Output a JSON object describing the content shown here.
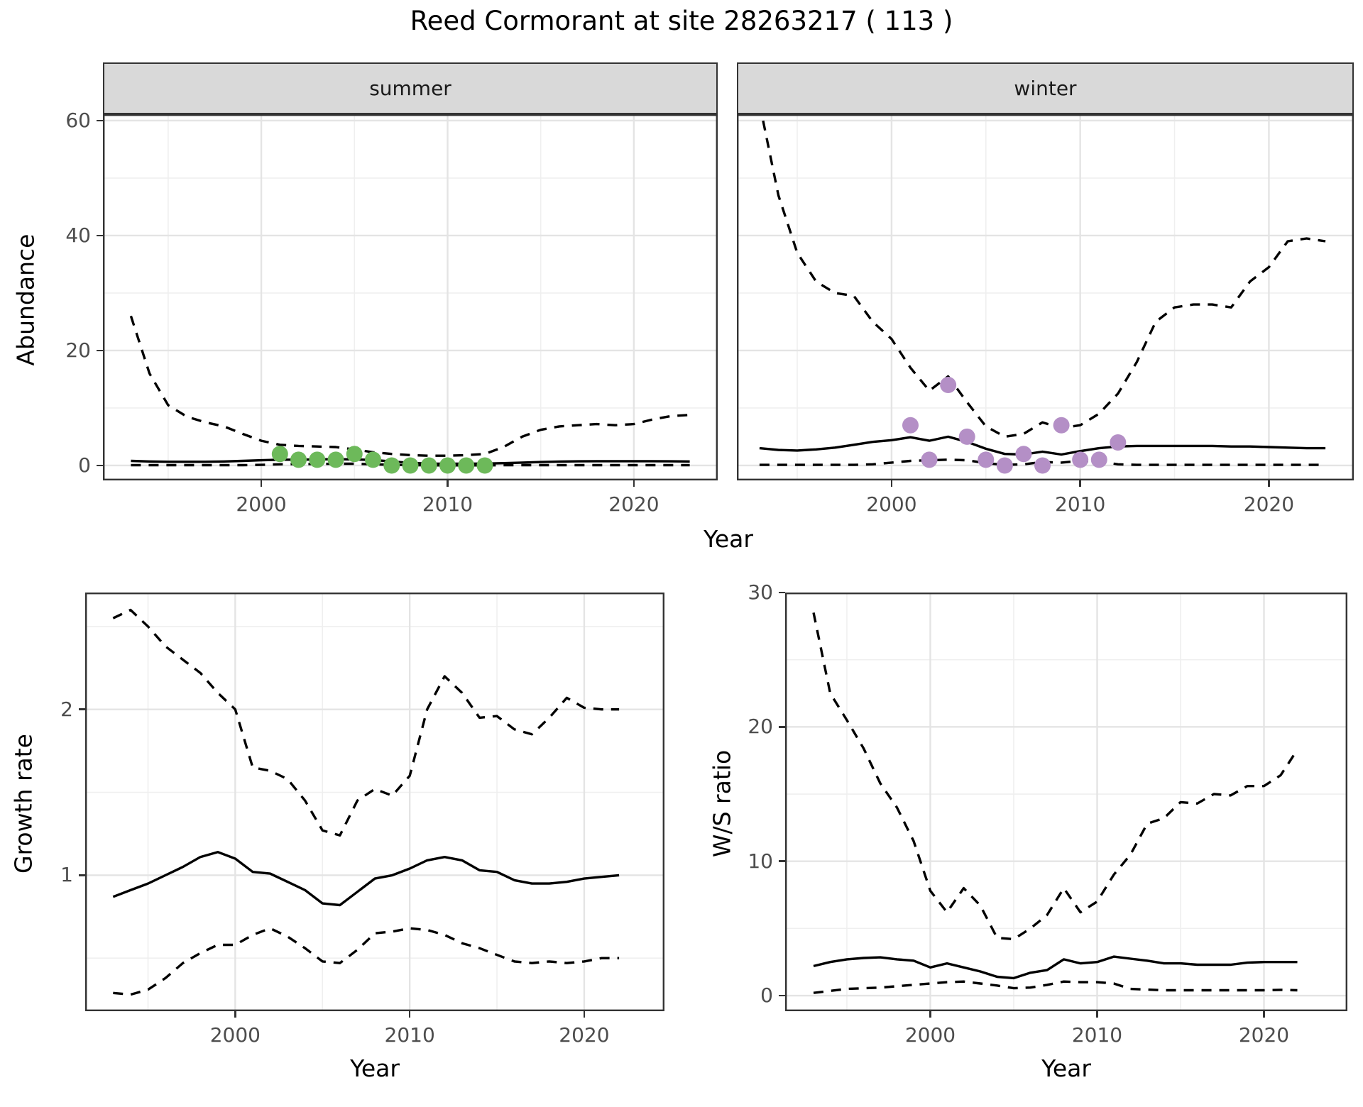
{
  "figure": {
    "title": "Reed Cormorant at site 28263217 ( 113 )"
  },
  "facets": [
    {
      "label": "summer"
    },
    {
      "label": "winter"
    }
  ],
  "axes": {
    "abundance_label": "Abundance",
    "growth_label": "Growth rate",
    "ws_label": "W/S ratio",
    "year_label_top": "Year",
    "year_label_bottom_left": "Year",
    "year_label_bottom_right": "Year"
  },
  "colors": {
    "summer_points": "#6db95a",
    "winter_points": "#b48fc6",
    "line": "#000000",
    "grid_major": "#e4e4e4",
    "grid_minor": "#efefef",
    "strip_bg": "#d9d9d9",
    "panel_border": "#333333",
    "tick_text": "#4d4d4d"
  },
  "chart_data": [
    {
      "id": "abundance-summer",
      "type": "line",
      "facet": "summer",
      "ylabel": "Abundance",
      "xlabel": "Year",
      "x_ticks": [
        2000,
        2010,
        2020
      ],
      "x_minor": [
        1995,
        2005,
        2015
      ],
      "y_ticks": [
        0,
        20,
        40,
        60
      ],
      "y_minor": [
        10,
        30,
        50
      ],
      "xlim": [
        1991.5,
        2024.5
      ],
      "ylim": [
        -2.6,
        61.1
      ],
      "years": [
        1993,
        1994,
        1995,
        1996,
        1997,
        1998,
        1999,
        2000,
        2001,
        2002,
        2003,
        2004,
        2005,
        2006,
        2007,
        2008,
        2009,
        2010,
        2011,
        2012,
        2013,
        2014,
        2015,
        2016,
        2017,
        2018,
        2019,
        2020,
        2021,
        2022,
        2023
      ],
      "series": [
        {
          "name": "upper_ci",
          "style": "dashed",
          "y": [
            26,
            16,
            10.5,
            8.5,
            7.5,
            6.8,
            5.5,
            4.3,
            3.6,
            3.4,
            3.3,
            3.2,
            2.8,
            2.3,
            2.0,
            1.8,
            1.7,
            1.7,
            1.8,
            2.0,
            3.2,
            5.0,
            6.2,
            6.8,
            7.0,
            7.2,
            7.0,
            7.2,
            8.0,
            8.6,
            8.8
          ]
        },
        {
          "name": "median",
          "style": "solid",
          "y": [
            0.8,
            0.7,
            0.65,
            0.65,
            0.65,
            0.7,
            0.8,
            0.9,
            1.0,
            1.0,
            1.05,
            1.1,
            1.05,
            0.95,
            0.7,
            0.45,
            0.33,
            0.3,
            0.3,
            0.33,
            0.4,
            0.5,
            0.6,
            0.68,
            0.72,
            0.75,
            0.75,
            0.75,
            0.75,
            0.72,
            0.7
          ]
        },
        {
          "name": "lower_ci",
          "style": "dashed",
          "y": [
            0.05,
            0.05,
            0.05,
            0.05,
            0.05,
            0.05,
            0.05,
            0.1,
            0.2,
            0.25,
            0.25,
            0.3,
            0.3,
            0.2,
            0.1,
            0.05,
            0.02,
            0.02,
            0.02,
            0.02,
            0.05,
            0.05,
            0.05,
            0.05,
            0.05,
            0.05,
            0.05,
            0.05,
            0.05,
            0.05,
            0.05
          ]
        },
        {
          "name": "observed_counts",
          "style": "points",
          "color": "#6db95a",
          "x": [
            2001,
            2002,
            2003,
            2004,
            2005,
            2006,
            2007,
            2008,
            2009,
            2010,
            2011,
            2012
          ],
          "y": [
            2,
            1,
            1,
            1,
            2,
            1,
            0,
            0,
            0,
            0,
            0,
            0
          ]
        }
      ]
    },
    {
      "id": "abundance-winter",
      "type": "line",
      "facet": "winter",
      "ylabel": "Abundance",
      "xlabel": "Year",
      "x_ticks": [
        2000,
        2010,
        2020
      ],
      "x_minor": [
        1995,
        2005,
        2015
      ],
      "y_ticks": [
        0,
        20,
        40,
        60
      ],
      "y_minor": [
        10,
        30,
        50
      ],
      "xlim": [
        1991.8,
        2024.5
      ],
      "ylim": [
        -2.6,
        61.1
      ],
      "years": [
        1993,
        1994,
        1995,
        1996,
        1997,
        1998,
        1999,
        2000,
        2001,
        2002,
        2003,
        2004,
        2005,
        2006,
        2007,
        2008,
        2009,
        2010,
        2011,
        2012,
        2013,
        2014,
        2015,
        2016,
        2017,
        2018,
        2019,
        2020,
        2021,
        2022,
        2023
      ],
      "series": [
        {
          "name": "upper_ci",
          "style": "dashed",
          "y": [
            63,
            47,
            37,
            32,
            30,
            29.5,
            25,
            22,
            17,
            13,
            15.5,
            11,
            6.8,
            5.0,
            5.5,
            7.5,
            6.5,
            7.0,
            9.0,
            12.5,
            18,
            25,
            27.5,
            28,
            28,
            27.5,
            32,
            34.5,
            39,
            39.5,
            39
          ]
        },
        {
          "name": "median",
          "style": "solid",
          "y": [
            3.0,
            2.7,
            2.6,
            2.8,
            3.1,
            3.6,
            4.1,
            4.4,
            4.9,
            4.3,
            5.0,
            4.1,
            2.9,
            2.0,
            1.9,
            2.4,
            1.9,
            2.5,
            3.0,
            3.3,
            3.4,
            3.4,
            3.4,
            3.4,
            3.4,
            3.3,
            3.3,
            3.2,
            3.1,
            3.0,
            3.0
          ]
        },
        {
          "name": "lower_ci",
          "style": "dashed",
          "y": [
            0.1,
            0.1,
            0.1,
            0.1,
            0.1,
            0.1,
            0.2,
            0.5,
            0.8,
            0.9,
            1.0,
            0.9,
            0.4,
            0.1,
            0.2,
            0.6,
            0.5,
            0.8,
            0.7,
            0.2,
            0.1,
            0.1,
            0.1,
            0.1,
            0.1,
            0.1,
            0.1,
            0.1,
            0.1,
            0.1,
            0.1
          ]
        },
        {
          "name": "observed_counts",
          "style": "points",
          "color": "#b48fc6",
          "x": [
            2001,
            2002,
            2003,
            2004,
            2005,
            2006,
            2007,
            2008,
            2009,
            2010,
            2011,
            2012
          ],
          "y": [
            7,
            1,
            14,
            5,
            1,
            0,
            2,
            0,
            7,
            1,
            1,
            4
          ]
        }
      ]
    },
    {
      "id": "growth-rate",
      "type": "line",
      "ylabel": "Growth rate",
      "xlabel": "Year",
      "x_ticks": [
        2000,
        2010,
        2020
      ],
      "x_minor": [
        1995,
        2005,
        2015
      ],
      "y_ticks": [
        1,
        2
      ],
      "y_minor": [
        0.5,
        1.5,
        2.5
      ],
      "xlim": [
        1991.4,
        2024.6
      ],
      "ylim": [
        0.18,
        2.705
      ],
      "years": [
        1993,
        1994,
        1995,
        1996,
        1997,
        1998,
        1999,
        2000,
        2001,
        2002,
        2003,
        2004,
        2005,
        2006,
        2007,
        2008,
        2009,
        2010,
        2011,
        2012,
        2013,
        2014,
        2015,
        2016,
        2017,
        2018,
        2019,
        2020,
        2021,
        2022
      ],
      "series": [
        {
          "name": "upper_ci",
          "style": "dashed",
          "y": [
            2.55,
            2.6,
            2.5,
            2.38,
            2.3,
            2.22,
            2.1,
            2.0,
            1.65,
            1.63,
            1.58,
            1.45,
            1.27,
            1.24,
            1.45,
            1.52,
            1.48,
            1.6,
            2.0,
            2.2,
            2.1,
            1.95,
            1.96,
            1.88,
            1.85,
            1.95,
            2.07,
            2.01,
            2.0,
            2.0
          ]
        },
        {
          "name": "median",
          "style": "solid",
          "y": [
            0.87,
            0.91,
            0.95,
            1.0,
            1.05,
            1.11,
            1.14,
            1.1,
            1.02,
            1.01,
            0.96,
            0.91,
            0.83,
            0.82,
            0.9,
            0.98,
            1.0,
            1.04,
            1.09,
            1.11,
            1.09,
            1.03,
            1.02,
            0.97,
            0.95,
            0.95,
            0.96,
            0.98,
            0.99,
            1.0
          ]
        },
        {
          "name": "lower_ci",
          "style": "dashed",
          "y": [
            0.29,
            0.28,
            0.31,
            0.38,
            0.47,
            0.53,
            0.58,
            0.58,
            0.64,
            0.68,
            0.63,
            0.56,
            0.48,
            0.47,
            0.55,
            0.65,
            0.66,
            0.68,
            0.67,
            0.64,
            0.59,
            0.56,
            0.52,
            0.48,
            0.47,
            0.48,
            0.47,
            0.48,
            0.5,
            0.5
          ]
        }
      ]
    },
    {
      "id": "ws-ratio",
      "type": "line",
      "ylabel": "W/S ratio",
      "xlabel": "Year",
      "x_ticks": [
        2000,
        2010,
        2020
      ],
      "x_minor": [
        1995,
        2005,
        2015
      ],
      "y_ticks": [
        0,
        10,
        20,
        30
      ],
      "y_minor": [
        5,
        15,
        25
      ],
      "xlim": [
        1991.3,
        2025.0
      ],
      "ylim": [
        -1.16,
        30.0
      ],
      "years": [
        1993,
        1994,
        1995,
        1996,
        1997,
        1998,
        1999,
        2000,
        2001,
        2002,
        2003,
        2004,
        2005,
        2006,
        2007,
        2008,
        2009,
        2010,
        2011,
        2012,
        2013,
        2014,
        2015,
        2016,
        2017,
        2018,
        2019,
        2020,
        2021,
        2022
      ],
      "series": [
        {
          "name": "upper_ci",
          "style": "dashed",
          "y": [
            28.5,
            22.5,
            20.5,
            18.4,
            15.8,
            14.0,
            11.5,
            7.8,
            6.2,
            8.0,
            6.7,
            4.3,
            4.2,
            5.0,
            6.0,
            8.0,
            6.2,
            7.0,
            9.0,
            10.5,
            12.8,
            13.2,
            14.4,
            14.3,
            15.0,
            14.9,
            15.6,
            15.6,
            16.4,
            18.3
          ]
        },
        {
          "name": "median",
          "style": "solid",
          "y": [
            2.2,
            2.5,
            2.7,
            2.8,
            2.85,
            2.7,
            2.6,
            2.1,
            2.4,
            2.1,
            1.8,
            1.4,
            1.3,
            1.7,
            1.9,
            2.7,
            2.4,
            2.5,
            2.9,
            2.75,
            2.6,
            2.4,
            2.4,
            2.3,
            2.3,
            2.3,
            2.45,
            2.5,
            2.5,
            2.5
          ]
        },
        {
          "name": "lower_ci",
          "style": "dashed",
          "y": [
            0.2,
            0.35,
            0.5,
            0.55,
            0.6,
            0.7,
            0.8,
            0.9,
            1.0,
            1.05,
            0.9,
            0.75,
            0.55,
            0.6,
            0.8,
            1.05,
            1.0,
            1.0,
            0.9,
            0.5,
            0.45,
            0.4,
            0.4,
            0.4,
            0.4,
            0.4,
            0.4,
            0.4,
            0.43,
            0.4
          ]
        }
      ]
    }
  ]
}
